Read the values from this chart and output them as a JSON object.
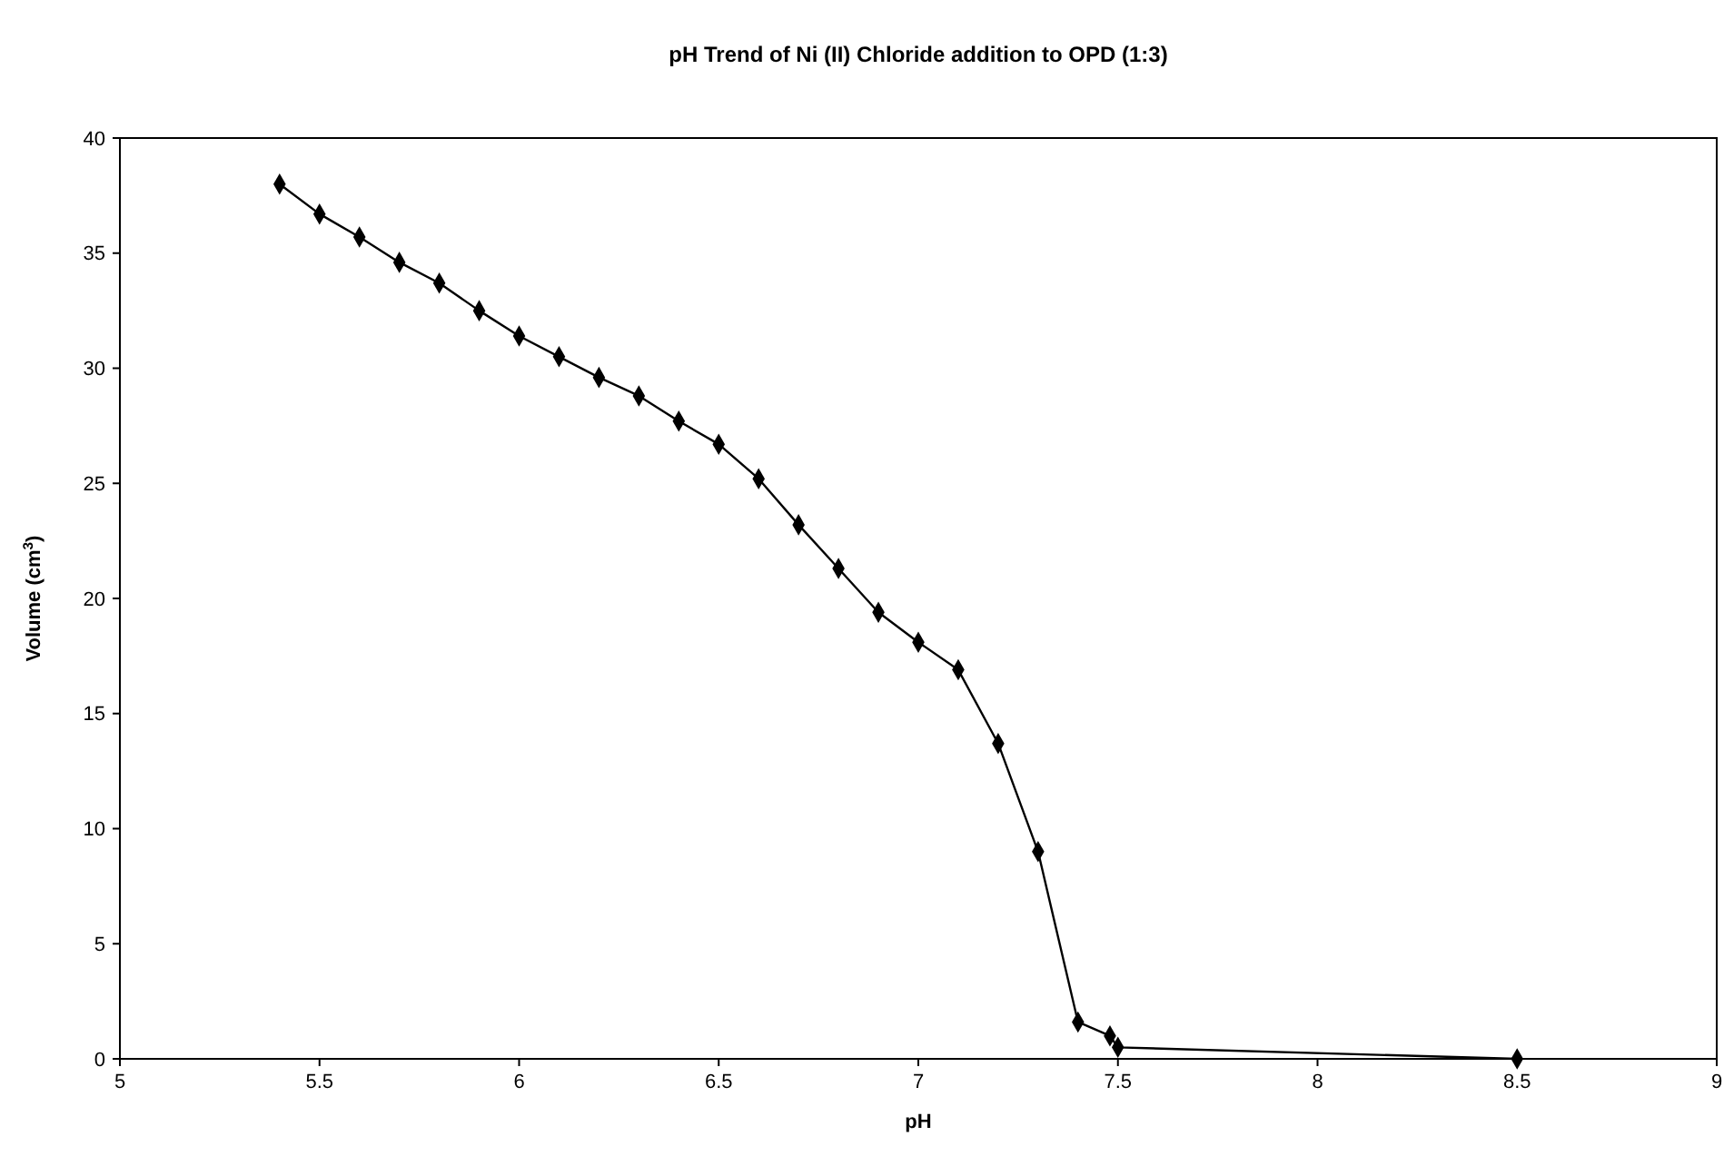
{
  "chart_data": {
    "type": "line",
    "title": "pH Trend of Ni (II) Chloride addition to OPD (1:3)",
    "xlabel": "pH",
    "ylabel": "Volume (cm$^{3}$)",
    "x": [
      5.4,
      5.5,
      5.6,
      5.7,
      5.8,
      5.9,
      6.0,
      6.1,
      6.2,
      6.3,
      6.4,
      6.5,
      6.6,
      6.7,
      6.8,
      6.9,
      7.0,
      7.1,
      7.2,
      7.3,
      7.4,
      7.48,
      7.5,
      8.5
    ],
    "series": [
      {
        "color": "#000000",
        "values": [
          38,
          36.7,
          35.7,
          34.6,
          33.7,
          32.5,
          31.4,
          30.5,
          29.6,
          28.8,
          27.7,
          26.7,
          25.2,
          23.2,
          21.3,
          19.4,
          18.1,
          16.9,
          13.7,
          9.0,
          1.6,
          1.0,
          0.5,
          0
        ]
      }
    ],
    "xlim": [
      5,
      9
    ],
    "xticks": [
      5,
      5.5,
      6,
      6.5,
      7,
      7.5,
      8,
      8.5,
      9
    ],
    "ylim": [
      0,
      40
    ],
    "yticks": [
      0,
      5,
      10,
      15,
      20,
      25,
      30,
      35,
      40
    ],
    "grid": false,
    "marker": "diamond",
    "line_style": "solid"
  }
}
